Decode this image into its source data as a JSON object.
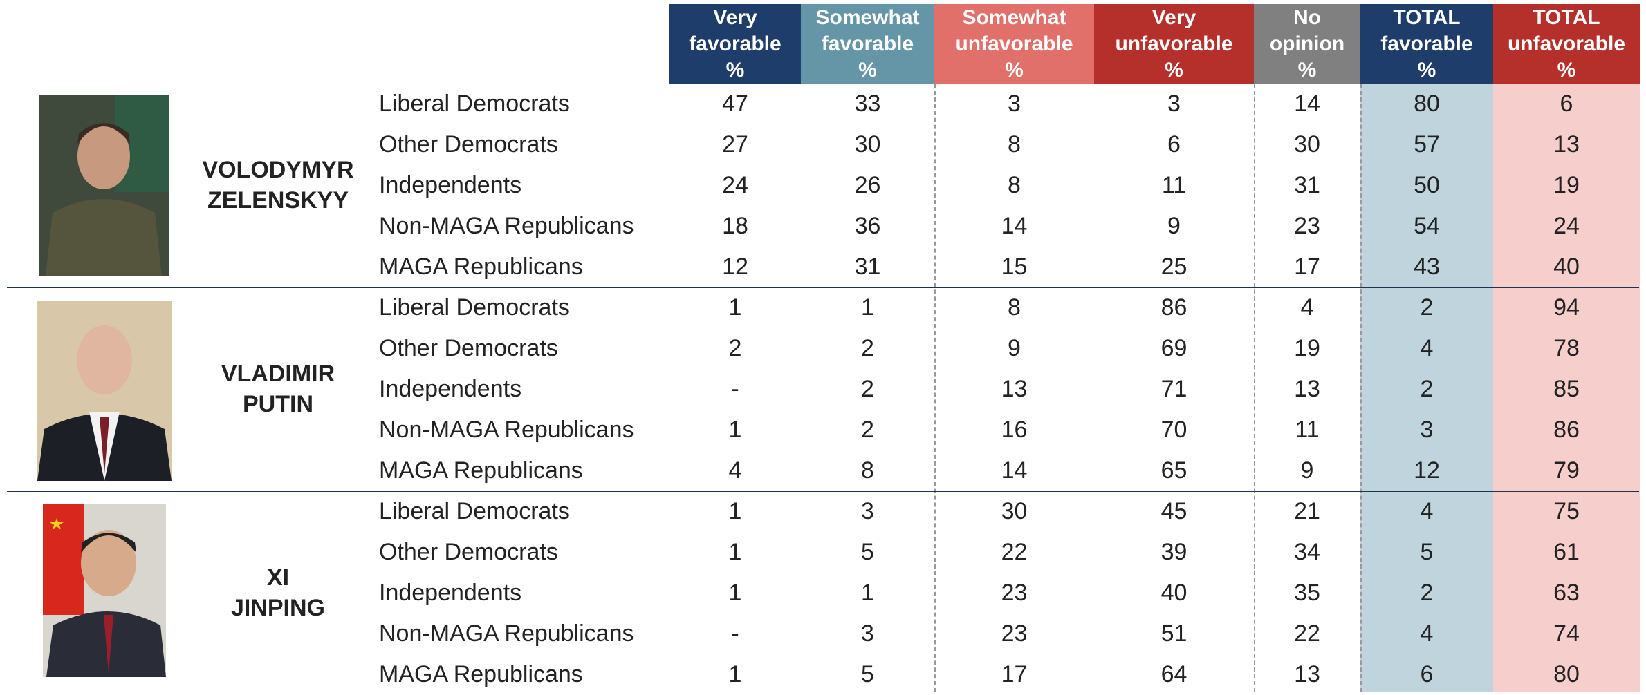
{
  "columns": [
    "Very\nfavorable\n%",
    "Somewhat\nfavorable\n%",
    "Somewhat\nunfavorable\n%",
    "Very\nunfavorable\n%",
    "No\nopinion\n%",
    "TOTAL\nfavorable\n%",
    "TOTAL\nunfavorable\n%"
  ],
  "groups": [
    {
      "name": "VOLODYMYR\nZELENSKYY",
      "rows": [
        {
          "label": "Liberal Democrats",
          "values": [
            47,
            33,
            3,
            3,
            14,
            80,
            6
          ]
        },
        {
          "label": "Other Democrats",
          "values": [
            27,
            30,
            8,
            6,
            30,
            57,
            13
          ]
        },
        {
          "label": "Independents",
          "values": [
            24,
            26,
            8,
            11,
            31,
            50,
            19
          ]
        },
        {
          "label": "Non-MAGA Republicans",
          "values": [
            18,
            36,
            14,
            9,
            23,
            54,
            24
          ]
        },
        {
          "label": "MAGA Republicans",
          "values": [
            12,
            31,
            15,
            25,
            17,
            43,
            40
          ]
        }
      ]
    },
    {
      "name": "VLADIMIR\nPUTIN",
      "rows": [
        {
          "label": "Liberal Democrats",
          "values": [
            1,
            1,
            8,
            86,
            4,
            2,
            94
          ]
        },
        {
          "label": "Other Democrats",
          "values": [
            2,
            2,
            9,
            69,
            19,
            4,
            78
          ]
        },
        {
          "label": "Independents",
          "values": [
            "-",
            2,
            13,
            71,
            13,
            2,
            85
          ]
        },
        {
          "label": "Non-MAGA Republicans",
          "values": [
            1,
            2,
            16,
            70,
            11,
            3,
            86
          ]
        },
        {
          "label": "MAGA Republicans",
          "values": [
            4,
            8,
            14,
            65,
            9,
            12,
            79
          ]
        }
      ]
    },
    {
      "name": "XI\nJINPING",
      "rows": [
        {
          "label": "Liberal Democrats",
          "values": [
            1,
            3,
            30,
            45,
            21,
            4,
            75
          ]
        },
        {
          "label": "Other Democrats",
          "values": [
            1,
            5,
            22,
            39,
            34,
            5,
            61
          ]
        },
        {
          "label": "Independents",
          "values": [
            1,
            1,
            23,
            40,
            35,
            2,
            63
          ]
        },
        {
          "label": "Non-MAGA Republicans",
          "values": [
            "-",
            3,
            23,
            51,
            22,
            4,
            74
          ]
        },
        {
          "label": "MAGA Republicans",
          "values": [
            1,
            5,
            17,
            64,
            13,
            6,
            80
          ]
        }
      ]
    }
  ]
}
